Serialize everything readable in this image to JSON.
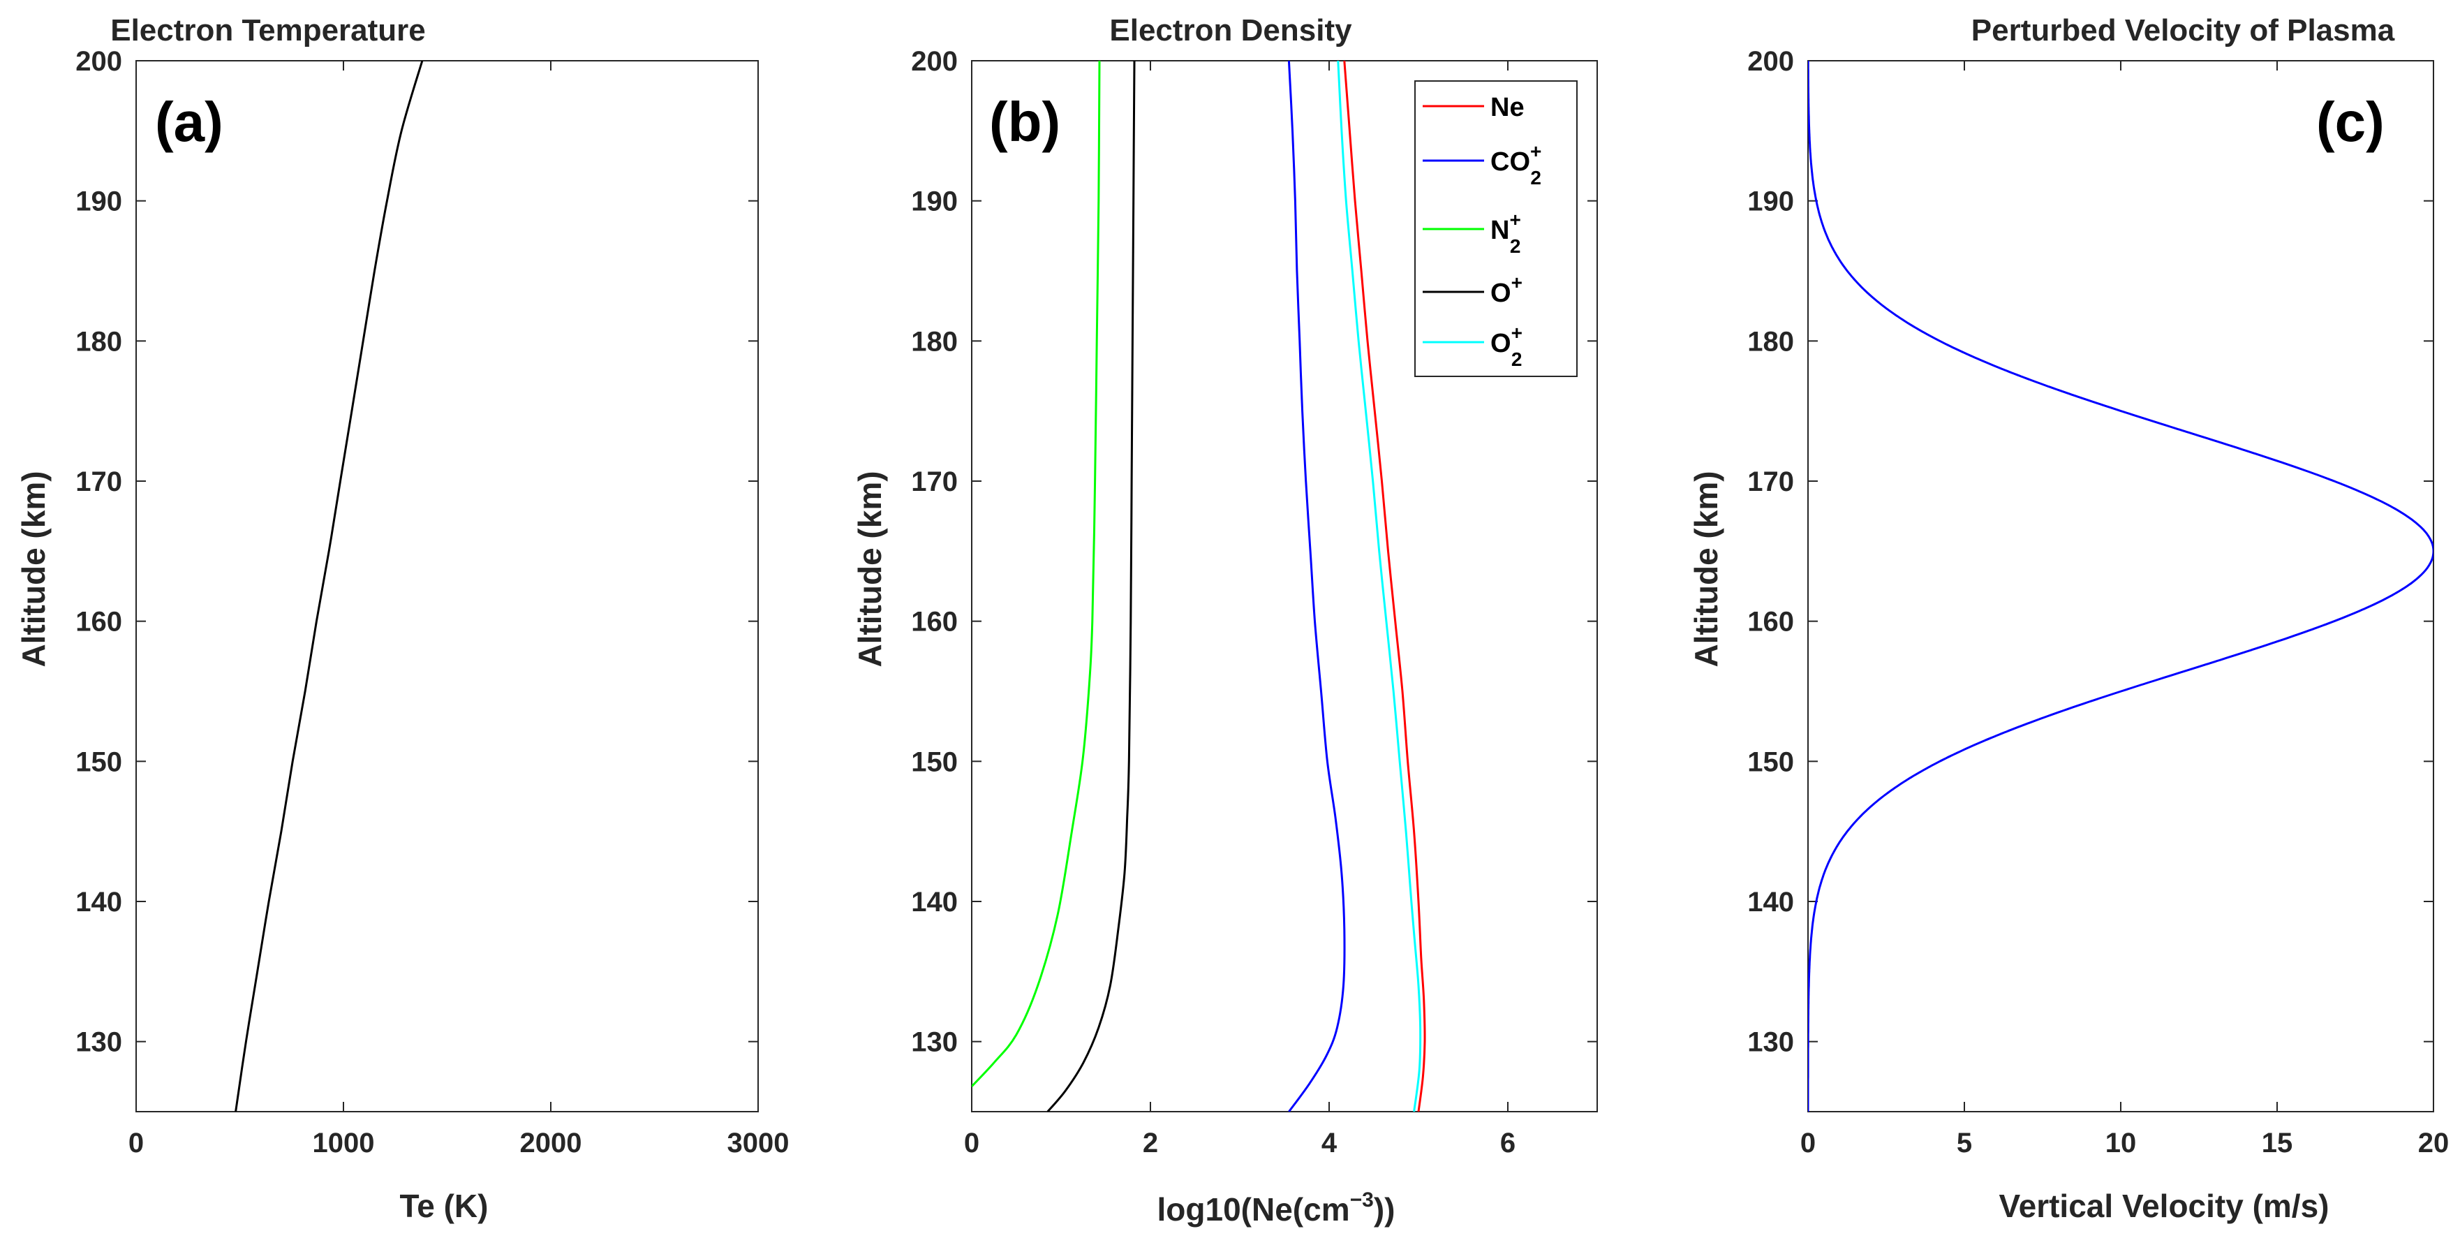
{
  "chart_data": [
    {
      "id": "a",
      "type": "line",
      "panel_label": "(a)",
      "title": "Electron Temperature",
      "xlabel": "Te (K)",
      "ylabel": "Altitude (km)",
      "xlim": [
        0,
        3000
      ],
      "ylim": [
        125,
        200
      ],
      "xticks": [
        "0",
        "1000",
        "2000",
        "3000"
      ],
      "yticks": [
        "130",
        "140",
        "150",
        "160",
        "170",
        "180",
        "190",
        "200"
      ],
      "series": [
        {
          "name": "Te",
          "color": "#000000",
          "points": [
            [
              480,
              125
            ],
            [
              530,
              130
            ],
            [
              585,
              135
            ],
            [
              640,
              140
            ],
            [
              700,
              145
            ],
            [
              755,
              150
            ],
            [
              815,
              155
            ],
            [
              870,
              160
            ],
            [
              930,
              165
            ],
            [
              985,
              170
            ],
            [
              1040,
              175
            ],
            [
              1095,
              180
            ],
            [
              1150,
              185
            ],
            [
              1210,
              190
            ],
            [
              1280,
              195
            ],
            [
              1380,
              200
            ]
          ]
        }
      ]
    },
    {
      "id": "b",
      "type": "line",
      "panel_label": "(b)",
      "title": "Electron Density",
      "xlabel": "log10(Ne(cm",
      "xlabel_sup": "−3",
      "xlabel_end": "))",
      "ylabel": "Altitude (km)",
      "xlim": [
        0,
        7
      ],
      "ylim": [
        125,
        200
      ],
      "xticks": [
        "0",
        "2",
        "4",
        "6"
      ],
      "yticks": [
        "130",
        "140",
        "150",
        "160",
        "170",
        "180",
        "190",
        "200"
      ],
      "legend": {
        "placement": "top-right",
        "entries": [
          {
            "base": "Ne",
            "sup": "",
            "sub": "",
            "color": "#ff0000"
          },
          {
            "base": "CO",
            "sup": "+",
            "sub": "2",
            "color": "#0000ff"
          },
          {
            "base": "N",
            "sup": "+",
            "sub": "2",
            "color": "#00ff00"
          },
          {
            "base": "O",
            "sup": "+",
            "sub": "",
            "color": "#000000"
          },
          {
            "base": "O",
            "sup": "+",
            "sub": "2",
            "color": "#00ffff"
          }
        ]
      },
      "series": [
        {
          "name": "Ne",
          "color": "#ff0000",
          "points": [
            [
              5.0,
              125
            ],
            [
              5.05,
              127.5
            ],
            [
              5.07,
              130
            ],
            [
              5.06,
              133
            ],
            [
              5.03,
              136
            ],
            [
              5.0,
              140
            ],
            [
              4.95,
              145
            ],
            [
              4.88,
              150
            ],
            [
              4.82,
              155
            ],
            [
              4.74,
              160
            ],
            [
              4.66,
              165
            ],
            [
              4.59,
              170
            ],
            [
              4.51,
              175
            ],
            [
              4.43,
              180
            ],
            [
              4.36,
              185
            ],
            [
              4.29,
              190
            ],
            [
              4.23,
              195
            ],
            [
              4.17,
              200
            ]
          ]
        },
        {
          "name": "CO2+",
          "color": "#0000ff",
          "points": [
            [
              3.55,
              125
            ],
            [
              3.78,
              127
            ],
            [
              3.97,
              129
            ],
            [
              4.09,
              131
            ],
            [
              4.16,
              134
            ],
            [
              4.17,
              138
            ],
            [
              4.14,
              142
            ],
            [
              4.07,
              146
            ],
            [
              3.98,
              150
            ],
            [
              3.91,
              155
            ],
            [
              3.84,
              160
            ],
            [
              3.79,
              165
            ],
            [
              3.74,
              170
            ],
            [
              3.7,
              175
            ],
            [
              3.67,
              180
            ],
            [
              3.64,
              185
            ],
            [
              3.62,
              190
            ],
            [
              3.59,
              195
            ],
            [
              3.55,
              200
            ]
          ]
        },
        {
          "name": "N2+",
          "color": "#00ff00",
          "points": [
            [
              0.0,
              126.8
            ],
            [
              0.25,
              128.5
            ],
            [
              0.5,
              130.5
            ],
            [
              0.74,
              134
            ],
            [
              0.96,
              139
            ],
            [
              1.12,
              145
            ],
            [
              1.24,
              150
            ],
            [
              1.31,
              155
            ],
            [
              1.35,
              160
            ],
            [
              1.38,
              170
            ],
            [
              1.4,
              180
            ],
            [
              1.42,
              190
            ],
            [
              1.43,
              200
            ]
          ]
        },
        {
          "name": "O+",
          "color": "#000000",
          "points": [
            [
              0.85,
              125
            ],
            [
              1.05,
              126.5
            ],
            [
              1.25,
              128.5
            ],
            [
              1.42,
              131
            ],
            [
              1.55,
              134
            ],
            [
              1.64,
              138
            ],
            [
              1.71,
              142
            ],
            [
              1.74,
              146
            ],
            [
              1.76,
              150
            ],
            [
              1.78,
              160
            ],
            [
              1.79,
              170
            ],
            [
              1.8,
              180
            ],
            [
              1.81,
              190
            ],
            [
              1.82,
              200
            ]
          ]
        },
        {
          "name": "O2+",
          "color": "#00ffff",
          "points": [
            [
              4.95,
              125
            ],
            [
              5.01,
              128
            ],
            [
              5.02,
              131
            ],
            [
              5.0,
              134
            ],
            [
              4.96,
              137
            ],
            [
              4.92,
              140
            ],
            [
              4.86,
              145
            ],
            [
              4.79,
              150
            ],
            [
              4.72,
              155
            ],
            [
              4.64,
              160
            ],
            [
              4.56,
              165
            ],
            [
              4.49,
              170
            ],
            [
              4.41,
              175
            ],
            [
              4.33,
              180
            ],
            [
              4.26,
              185
            ],
            [
              4.19,
              190
            ],
            [
              4.14,
              195
            ],
            [
              4.1,
              200
            ]
          ]
        }
      ]
    },
    {
      "id": "c",
      "type": "line",
      "panel_label": "(c)",
      "title": "Perturbed Velocity of Plasma",
      "xlabel": "Vertical Velocity (m/s)",
      "ylabel": "Altitude (km)",
      "xlim": [
        0,
        20
      ],
      "ylim": [
        125,
        200
      ],
      "xticks": [
        "0",
        "5",
        "10",
        "15",
        "20"
      ],
      "yticks": [
        "130",
        "140",
        "150",
        "160",
        "170",
        "180",
        "190",
        "200"
      ],
      "gaussian": {
        "peak": 20,
        "center_km": 165,
        "sigma_km": 8.5
      },
      "series": [
        {
          "name": "Vertical velocity",
          "color": "#0000ff"
        }
      ]
    }
  ]
}
